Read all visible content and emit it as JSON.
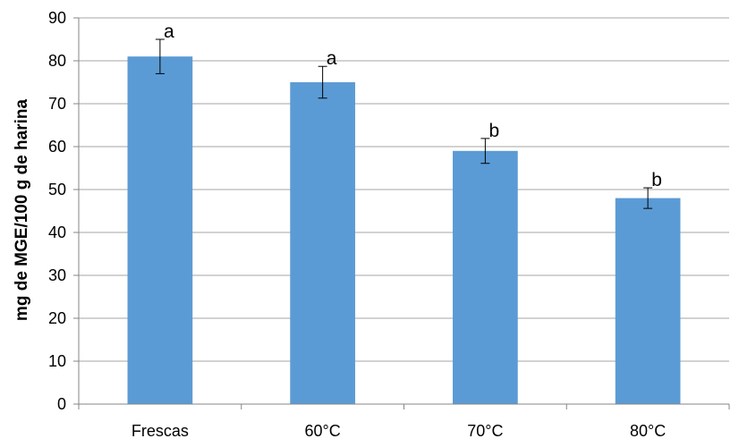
{
  "chart_data": {
    "type": "bar",
    "categories": [
      "Frescas",
      "60°C",
      "70°C",
      "80°C"
    ],
    "values": [
      81,
      75,
      59,
      48
    ],
    "error_bars": [
      4,
      3.7,
      2.9,
      2.4
    ],
    "significance_labels": [
      "a",
      "a",
      "b",
      "b"
    ],
    "title": "",
    "xlabel": "",
    "ylabel": "mg de MGE/100 g de harina",
    "ylim": [
      0,
      90
    ],
    "y_ticks": [
      0,
      10,
      20,
      30,
      40,
      50,
      60,
      70,
      80,
      90
    ],
    "grid": true,
    "bar_color": "#5b9bd5",
    "gridline_color": "#a6a6a6"
  }
}
